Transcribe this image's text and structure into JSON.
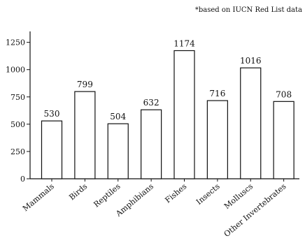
{
  "chart_data": {
    "type": "bar",
    "note": "*based on IUCN Red List data",
    "title": "",
    "xlabel": "",
    "ylabel": "",
    "categories": [
      "Mammals",
      "Birds",
      "Reptiles",
      "Amphibians",
      "Fishes",
      "Insects",
      "Molluscs",
      "Other Invertebrates"
    ],
    "values": [
      530,
      799,
      504,
      632,
      1174,
      716,
      1016,
      708
    ],
    "ylim": [
      0,
      1350
    ],
    "yticks": [
      0,
      250,
      500,
      750,
      1000,
      1250
    ],
    "grid": false,
    "legend": "none",
    "bar_color": "#ffffff",
    "bar_edge_color": "#111111",
    "data_labels": true
  }
}
